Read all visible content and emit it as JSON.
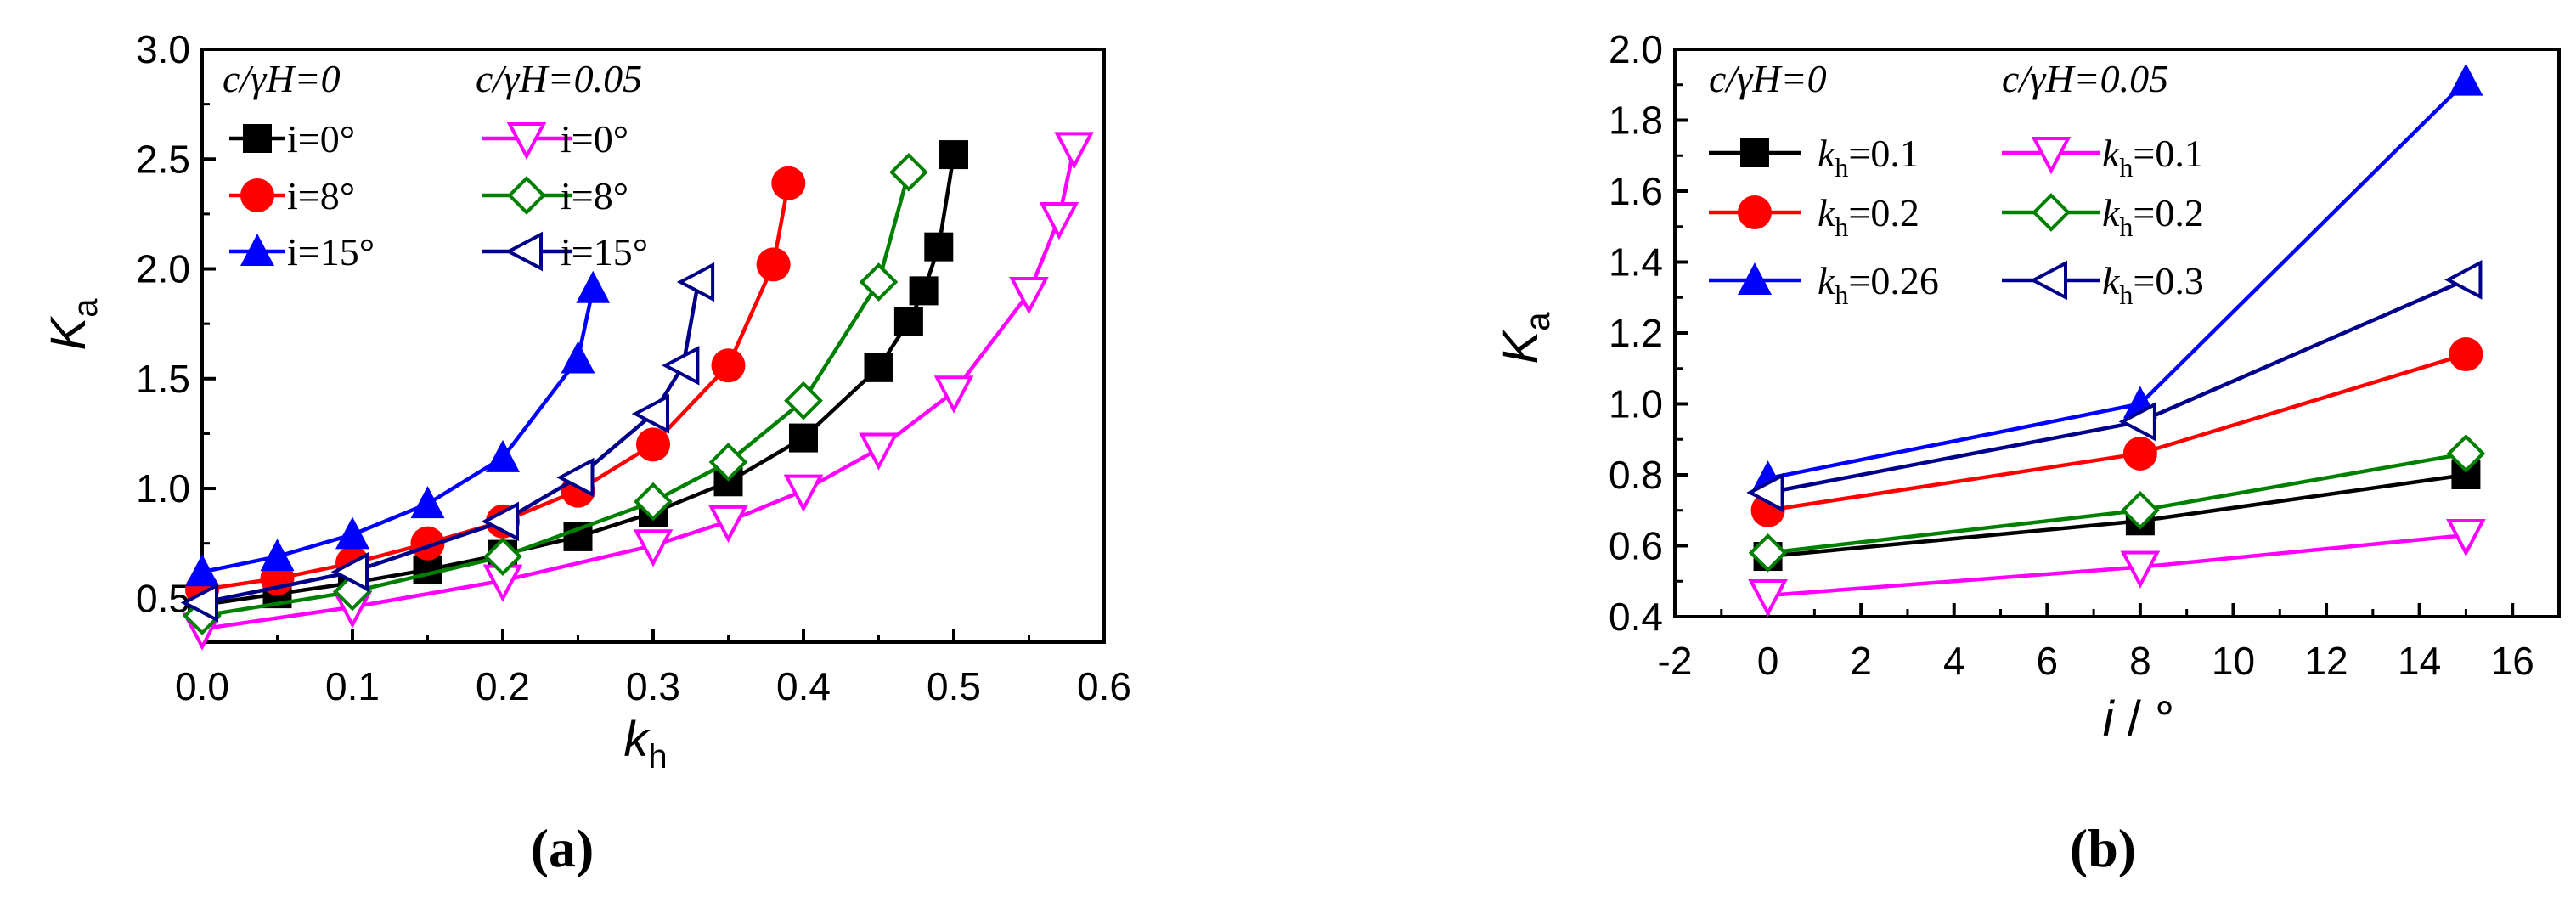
{
  "chart_data": [
    {
      "type": "line",
      "panel_label": "(a)",
      "xlabel_main": "k",
      "xlabel_sub": "h",
      "ylabel_main": "K",
      "ylabel_sub": "a",
      "xlim": [
        0.0,
        0.6
      ],
      "ylim": [
        0.3,
        3.0
      ],
      "xticks": [
        "0.0",
        "0.1",
        "0.2",
        "0.3",
        "0.4",
        "0.5",
        "0.6"
      ],
      "yticks": [
        "0.5",
        "1.0",
        "1.5",
        "2.0",
        "2.5",
        "3.0"
      ],
      "legend_headers": [
        "c/γH=0",
        "c/γH=0.05"
      ],
      "series": [
        {
          "name": "i=0°",
          "group": "c/γH=0",
          "color": "#000000",
          "marker": "square-filled",
          "x": [
            0.0,
            0.05,
            0.1,
            0.15,
            0.2,
            0.25,
            0.3,
            0.35,
            0.4,
            0.45,
            0.47,
            0.48,
            0.49,
            0.5
          ],
          "y": [
            0.47,
            0.52,
            0.57,
            0.63,
            0.7,
            0.78,
            0.89,
            1.03,
            1.23,
            1.55,
            1.76,
            1.9,
            2.1,
            2.52
          ]
        },
        {
          "name": "i=8°",
          "group": "c/γH=0",
          "color": "#ff0000",
          "marker": "circle-filled",
          "x": [
            0.0,
            0.05,
            0.1,
            0.15,
            0.2,
            0.25,
            0.3,
            0.35,
            0.38,
            0.39
          ],
          "y": [
            0.54,
            0.59,
            0.66,
            0.75,
            0.85,
            0.99,
            1.2,
            1.56,
            2.02,
            2.39
          ]
        },
        {
          "name": "i=15°",
          "group": "c/γH=0",
          "color": "#0000ff",
          "marker": "triangle-filled",
          "x": [
            0.0,
            0.05,
            0.1,
            0.15,
            0.2,
            0.25,
            0.26
          ],
          "y": [
            0.62,
            0.69,
            0.79,
            0.93,
            1.14,
            1.59,
            1.91
          ]
        },
        {
          "name": "i=0°",
          "group": "c/γH=0.05",
          "color": "#ff00ff",
          "marker": "triangle-down-open",
          "x": [
            0.0,
            0.1,
            0.2,
            0.3,
            0.35,
            0.4,
            0.45,
            0.5,
            0.55,
            0.57,
            0.58
          ],
          "y": [
            0.36,
            0.46,
            0.58,
            0.74,
            0.85,
            0.99,
            1.18,
            1.44,
            1.89,
            2.23,
            2.55
          ]
        },
        {
          "name": "i=8°",
          "group": "c/γH=0.05",
          "color": "#008000",
          "marker": "diamond-open",
          "x": [
            0.0,
            0.1,
            0.2,
            0.3,
            0.35,
            0.4,
            0.45,
            0.47
          ],
          "y": [
            0.42,
            0.53,
            0.69,
            0.94,
            1.12,
            1.4,
            1.94,
            2.44
          ]
        },
        {
          "name": "i=15°",
          "group": "c/γH=0.05",
          "color": "#00008b",
          "marker": "triangle-left-open",
          "x": [
            0.0,
            0.1,
            0.2,
            0.25,
            0.3,
            0.32,
            0.33
          ],
          "y": [
            0.48,
            0.62,
            0.85,
            1.05,
            1.34,
            1.56,
            1.94
          ]
        }
      ]
    },
    {
      "type": "line",
      "panel_label": "(b)",
      "xlabel_main": "i",
      "xlabel_sub": "",
      "xlabel_suffix": " / °",
      "ylabel_main": "K",
      "ylabel_sub": "a",
      "xlim": [
        -2,
        17
      ],
      "ylim": [
        0.4,
        2.0
      ],
      "xticks": [
        "-2",
        "0",
        "2",
        "4",
        "6",
        "8",
        "10",
        "12",
        "14",
        "16"
      ],
      "yticks": [
        "0.4",
        "0.6",
        "0.8",
        "1.0",
        "1.2",
        "1.4",
        "1.6",
        "1.8",
        "2.0"
      ],
      "legend_headers": [
        "c/γH=0",
        "c/γH=0.05"
      ],
      "series": [
        {
          "name": "kh=0.1",
          "label_main": "k",
          "label_sub": "h",
          "label_value": "=0.1",
          "group": "c/γH=0",
          "color": "#000000",
          "marker": "square-filled",
          "x": [
            0,
            8,
            15
          ],
          "y": [
            0.57,
            0.67,
            0.8
          ]
        },
        {
          "name": "kh=0.2",
          "label_main": "k",
          "label_sub": "h",
          "label_value": "=0.2",
          "group": "c/γH=0",
          "color": "#ff0000",
          "marker": "circle-filled",
          "x": [
            0,
            8,
            15
          ],
          "y": [
            0.7,
            0.86,
            1.14
          ]
        },
        {
          "name": "kh=0.26",
          "label_main": "k",
          "label_sub": "h",
          "label_value": "=0.26",
          "group": "c/γH=0",
          "color": "#0000ff",
          "marker": "triangle-filled",
          "x": [
            0,
            8,
            15
          ],
          "y": [
            0.79,
            1.0,
            1.91
          ]
        },
        {
          "name": "kh=0.1",
          "label_main": "k",
          "label_sub": "h",
          "label_value": "=0.1",
          "group": "c/γH=0.05",
          "color": "#ff00ff",
          "marker": "triangle-down-open",
          "x": [
            0,
            8,
            15
          ],
          "y": [
            0.46,
            0.54,
            0.63
          ]
        },
        {
          "name": "kh=0.2",
          "label_main": "k",
          "label_sub": "h",
          "label_value": "=0.2",
          "group": "c/γH=0.05",
          "color": "#008000",
          "marker": "diamond-open",
          "x": [
            0,
            8,
            15
          ],
          "y": [
            0.58,
            0.7,
            0.86
          ]
        },
        {
          "name": "kh=0.3",
          "label_main": "k",
          "label_sub": "h",
          "label_value": "=0.3",
          "group": "c/γH=0.05",
          "color": "#00008b",
          "marker": "triangle-left-open",
          "x": [
            0,
            8,
            15
          ],
          "y": [
            0.75,
            0.95,
            1.35
          ]
        }
      ]
    }
  ]
}
